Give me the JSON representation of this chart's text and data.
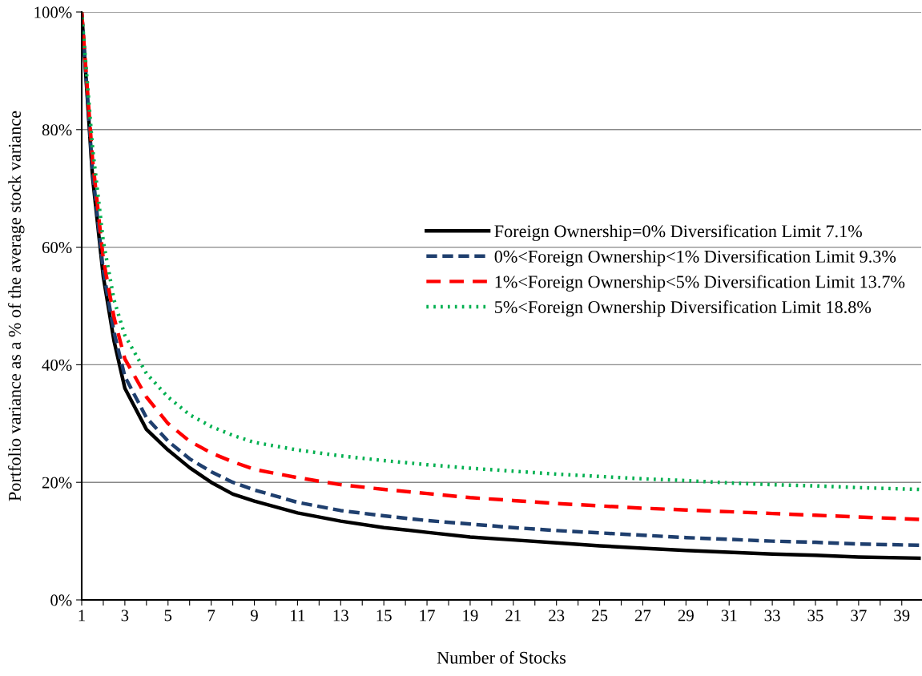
{
  "chart_data": {
    "type": "line",
    "xlabel": "Number of Stocks",
    "ylabel": "Portfolio variance as a % of the average stock variance",
    "x": [
      1,
      1.5,
      2,
      2.5,
      3,
      4,
      5,
      6,
      7,
      8,
      9,
      11,
      13,
      15,
      17,
      19,
      21,
      23,
      25,
      27,
      29,
      31,
      33,
      35,
      37,
      39.8
    ],
    "series": [
      {
        "name": "Foreign Ownership=0% Diversification Limit 7.1%",
        "color": "#000000",
        "line_style": "solid",
        "values": [
          100,
          72,
          55,
          44,
          36,
          29,
          25.5,
          22.5,
          20,
          18,
          16.8,
          14.8,
          13.4,
          12.3,
          11.5,
          10.7,
          10.2,
          9.7,
          9.2,
          8.8,
          8.4,
          8.1,
          7.8,
          7.6,
          7.3,
          7.1
        ]
      },
      {
        "name": "0%<Foreign Ownership<1% Diversification Limit 9.3%",
        "color": "#1f3f6e",
        "line_style": "dashed",
        "values": [
          100,
          73,
          56,
          45.5,
          38,
          31,
          27,
          24,
          21.8,
          20,
          18.7,
          16.6,
          15.2,
          14.3,
          13.5,
          12.9,
          12.3,
          11.8,
          11.4,
          11.0,
          10.6,
          10.3,
          10.0,
          9.8,
          9.5,
          9.3
        ]
      },
      {
        "name": "1%<Foreign Ownership<5% Diversification Limit 13.7%",
        "color": "#ff0000",
        "line_style": "dashed",
        "values": [
          100,
          75,
          58,
          48,
          41,
          34.5,
          30,
          27,
          25,
          23.5,
          22.2,
          20.8,
          19.6,
          18.8,
          18.1,
          17.4,
          16.9,
          16.4,
          16.0,
          15.6,
          15.3,
          15.0,
          14.7,
          14.4,
          14.1,
          13.7
        ]
      },
      {
        "name": "5%<Foreign Ownership Diversification Limit 18.8%",
        "color": "#00b050",
        "line_style": "dotted",
        "values": [
          100,
          77,
          61,
          51,
          45,
          38.5,
          34.5,
          31.5,
          29.5,
          28,
          26.8,
          25.5,
          24.5,
          23.7,
          23.0,
          22.4,
          21.9,
          21.4,
          21.0,
          20.6,
          20.3,
          19.9,
          19.6,
          19.4,
          19.1,
          18.8
        ]
      }
    ],
    "xlim": [
      1,
      39.9
    ],
    "xticks": [
      1,
      {
        "value": 2,
        "label": null
      },
      3,
      {
        "value": 4,
        "label": null
      },
      5,
      {
        "value": 6,
        "label": null
      },
      7,
      {
        "value": 8,
        "label": null
      },
      9,
      {
        "value": 10,
        "label": null
      },
      11,
      {
        "value": 12,
        "label": null
      },
      13,
      {
        "value": 14,
        "label": null
      },
      15,
      {
        "value": 16,
        "label": null
      },
      17,
      {
        "value": 18,
        "label": null
      },
      19,
      {
        "value": 20,
        "label": null
      },
      21,
      {
        "value": 22,
        "label": null
      },
      23,
      {
        "value": 24,
        "label": null
      },
      25,
      {
        "value": 26,
        "label": null
      },
      27,
      {
        "value": 28,
        "label": null
      },
      29,
      {
        "value": 30,
        "label": null
      },
      31,
      {
        "value": 32,
        "label": null
      },
      33,
      {
        "value": 34,
        "label": null
      },
      35,
      {
        "value": 36,
        "label": null
      },
      37,
      {
        "value": 38,
        "label": null
      },
      39
    ],
    "ylim": [
      0,
      100
    ],
    "yticks": [
      {
        "value": 0,
        "label": "0%"
      },
      {
        "value": 20,
        "label": "20%"
      },
      {
        "value": 40,
        "label": "40%"
      },
      {
        "value": 60,
        "label": "60%"
      },
      {
        "value": 80,
        "label": "80%"
      },
      {
        "value": 100,
        "label": "100%"
      }
    ],
    "grid": "y",
    "legend": "right"
  }
}
